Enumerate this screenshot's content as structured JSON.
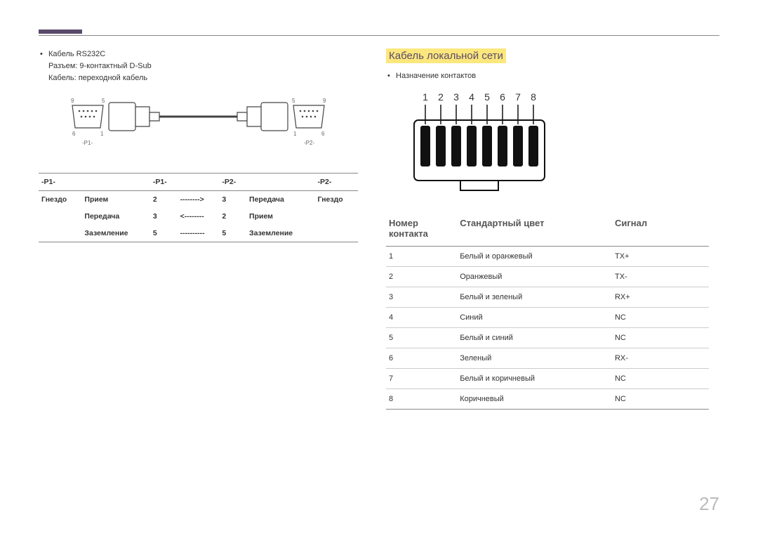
{
  "page_number": "27",
  "left": {
    "bullet_title": "Кабель RS232C",
    "line2": "Разъем: 9-контактный D-Sub",
    "line3": "Кабель: переходной кабель",
    "conn_labels": {
      "p1": "-P1-",
      "p2": "-P2-"
    },
    "pin_numbers": {
      "tl": "9",
      "tr": "5",
      "bl": "6",
      "br": "1",
      "r_tl": "5",
      "r_tr": "9",
      "r_bl": "1",
      "r_br": "6"
    },
    "table": {
      "headers": [
        "-P1-",
        "",
        "-P1-",
        "",
        "-P2-",
        "",
        "-P2-"
      ],
      "rows": [
        [
          "Гнездо",
          "Прием",
          "2",
          "-------->",
          "3",
          "Передача",
          "Гнездо"
        ],
        [
          "",
          "Передача",
          "3",
          "<--------",
          "2",
          "Прием",
          ""
        ],
        [
          "",
          "Заземление",
          "5",
          "----------",
          "5",
          "Заземление",
          ""
        ]
      ]
    }
  },
  "right": {
    "section_title": "Кабель локальной сети",
    "bullet": "Назначение контактов",
    "pin_labels": [
      "1",
      "2",
      "3",
      "4",
      "5",
      "6",
      "7",
      "8"
    ],
    "table": {
      "headers": [
        "Номер контакта",
        "Стандартный цвет",
        "Сигнал"
      ],
      "rows": [
        [
          "1",
          "Белый и оранжевый",
          "TX+"
        ],
        [
          "2",
          "Оранжевый",
          "TX-"
        ],
        [
          "3",
          "Белый и зеленый",
          "RX+"
        ],
        [
          "4",
          "Синий",
          "NC"
        ],
        [
          "5",
          "Белый и синий",
          "NC"
        ],
        [
          "6",
          "Зеленый",
          "RX-"
        ],
        [
          "7",
          "Белый и коричневый",
          "NC"
        ],
        [
          "8",
          "Коричневый",
          "NC"
        ]
      ]
    }
  },
  "colors": {
    "accent_bar": "#5a4a6a",
    "highlight_bg": "#fce77d",
    "text": "#333333",
    "rule": "#888888",
    "light_rule": "#cccccc",
    "page_num": "#bbbbbb",
    "connector_stroke": "#444444",
    "rj45_pin_fill": "#111111"
  }
}
